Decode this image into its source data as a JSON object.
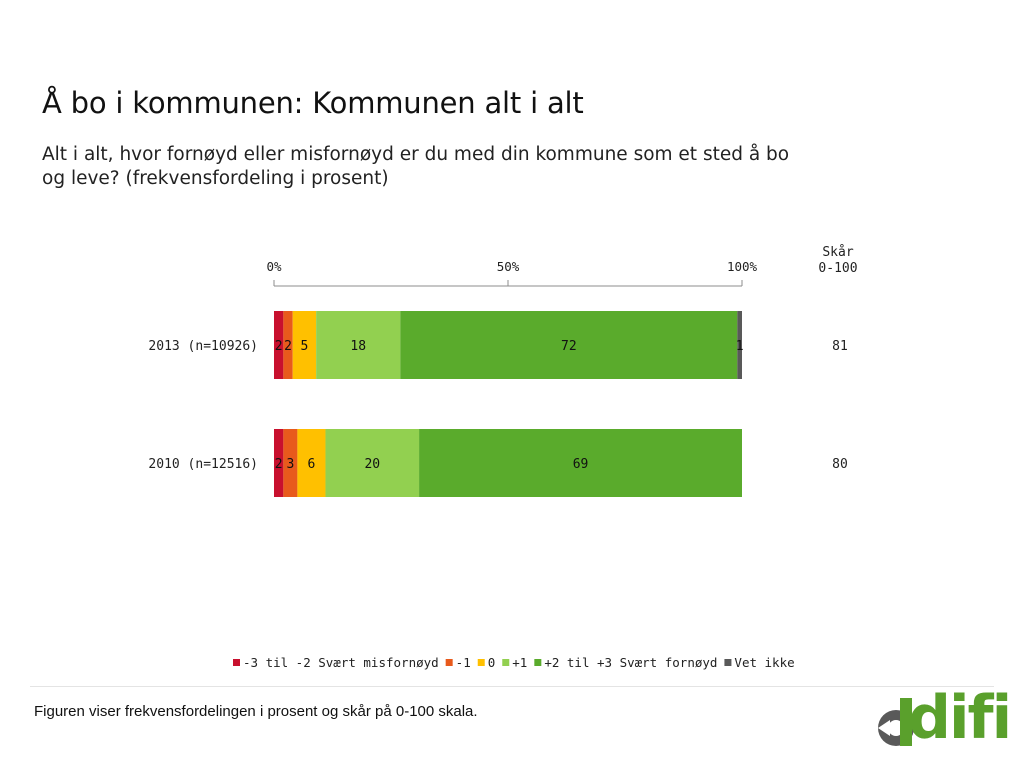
{
  "page": {
    "title": "Å bo i kommunen: Kommunen alt i alt",
    "subtitle": "Alt i alt, hvor fornøyd eller misfornøyd er du med din kommune som et sted å bo og leve? (frekvensfordeling i prosent)",
    "caption": "Figuren viser frekvensfordelingen i prosent og skår på 0-100 skala.",
    "logo_text": "difi"
  },
  "chart_data": {
    "type": "bar",
    "orientation": "horizontal",
    "stacked": true,
    "xlim": [
      0,
      100
    ],
    "x_ticks": [
      "0%",
      "50%",
      "100%"
    ],
    "score_header": [
      "Skår",
      "0-100"
    ],
    "categories": [
      "2013 (n=10926)",
      "2010 (n=12516)"
    ],
    "scores": [
      "81",
      "80"
    ],
    "series": [
      {
        "name": "-3 til -2 Svært misfornøyd",
        "color": "#c8102e",
        "values": [
          2,
          2
        ]
      },
      {
        "name": "-1",
        "color": "#e85a1c",
        "values": [
          2,
          3
        ]
      },
      {
        "name": "0",
        "color": "#ffc000",
        "values": [
          5,
          6
        ]
      },
      {
        "name": "+1",
        "color": "#92d050",
        "values": [
          18,
          20
        ]
      },
      {
        "name": "+2 til +3 Svært fornøyd",
        "color": "#5aab2c",
        "values": [
          72,
          69
        ]
      },
      {
        "name": "Vet ikke",
        "color": "#595959",
        "values": [
          1,
          0
        ]
      }
    ],
    "legend_position": "bottom"
  }
}
